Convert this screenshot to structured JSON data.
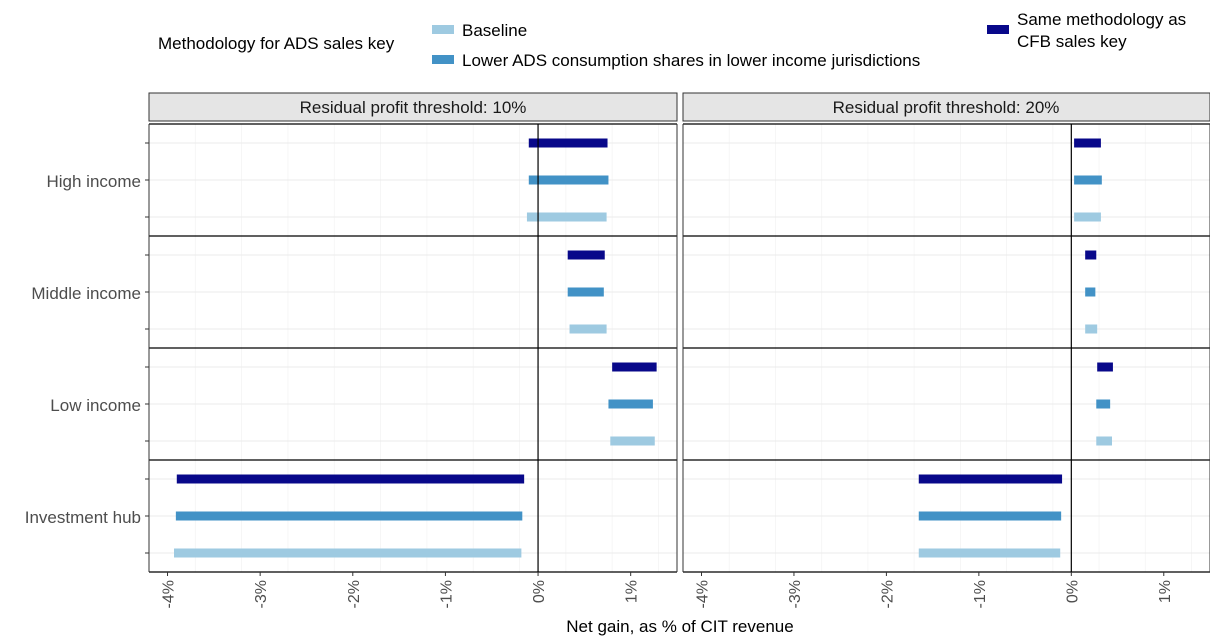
{
  "chart_data": {
    "type": "bar",
    "orientation": "horizontal-range",
    "legend": {
      "title": "Methodology for ADS sales key",
      "placement": "top",
      "entries": [
        {
          "key": "baseline",
          "label": "Baseline",
          "color": "#9ecae1"
        },
        {
          "key": "lower",
          "label": "Lower ADS consumption shares in lower income jurisdictions",
          "color": "#4292c6"
        },
        {
          "key": "same",
          "label_lines": [
            "Same methodology as",
            "CFB sales key"
          ],
          "color": "#08088a"
        }
      ]
    },
    "xlabel": "Net gain, as % of CIT revenue",
    "xlim": [
      -4.2,
      1.5
    ],
    "xticks": [
      -4,
      -3,
      -2,
      -1,
      0,
      1
    ],
    "xtick_labels": [
      "-4%",
      "-3%",
      "-2%",
      "-1%",
      "0%",
      "1%"
    ],
    "categories": [
      "High income",
      "Middle income",
      "Low income",
      "Investment hub"
    ],
    "grid": true,
    "panels": [
      {
        "strip": "Residual profit threshold: 10%",
        "groups": [
          {
            "category": "High income",
            "same": [
              -0.1,
              0.75
            ],
            "lower": [
              -0.1,
              0.76
            ],
            "baseline": [
              -0.12,
              0.74
            ]
          },
          {
            "category": "Middle income",
            "same": [
              0.32,
              0.72
            ],
            "lower": [
              0.32,
              0.71
            ],
            "baseline": [
              0.34,
              0.74
            ]
          },
          {
            "category": "Low income",
            "same": [
              0.8,
              1.28
            ],
            "lower": [
              0.76,
              1.24
            ],
            "baseline": [
              0.78,
              1.26
            ]
          },
          {
            "category": "Investment hub",
            "same": [
              -3.9,
              -0.15
            ],
            "lower": [
              -3.91,
              -0.17
            ],
            "baseline": [
              -3.93,
              -0.18
            ]
          }
        ]
      },
      {
        "strip": "Residual profit threshold: 20%",
        "groups": [
          {
            "category": "High income",
            "same": [
              0.03,
              0.32
            ],
            "lower": [
              0.03,
              0.33
            ],
            "baseline": [
              0.03,
              0.32
            ]
          },
          {
            "category": "Middle income",
            "same": [
              0.15,
              0.27
            ],
            "lower": [
              0.15,
              0.26
            ],
            "baseline": [
              0.15,
              0.28
            ]
          },
          {
            "category": "Low income",
            "same": [
              0.28,
              0.45
            ],
            "lower": [
              0.27,
              0.42
            ],
            "baseline": [
              0.27,
              0.44
            ]
          },
          {
            "category": "Investment hub",
            "same": [
              -1.65,
              -0.1
            ],
            "lower": [
              -1.65,
              -0.11
            ],
            "baseline": [
              -1.65,
              -0.12
            ]
          }
        ]
      }
    ]
  }
}
